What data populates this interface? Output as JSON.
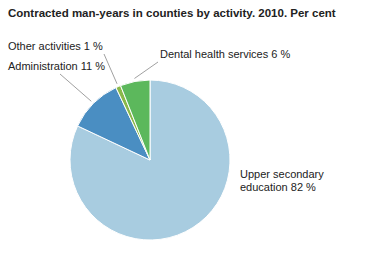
{
  "chart_data": {
    "type": "pie",
    "title": "Contracted man-years in counties by activity. 2010. Per cent",
    "categories": [
      "Upper secondary\neducation 82 %",
      "Administration 11 %",
      "Other activities 1 %",
      "Dental health services 6 %"
    ],
    "values": [
      82,
      11,
      1,
      6
    ],
    "colors": [
      "#a8cce0",
      "#4a8ec2",
      "#8ab84a",
      "#5cb85c"
    ]
  }
}
